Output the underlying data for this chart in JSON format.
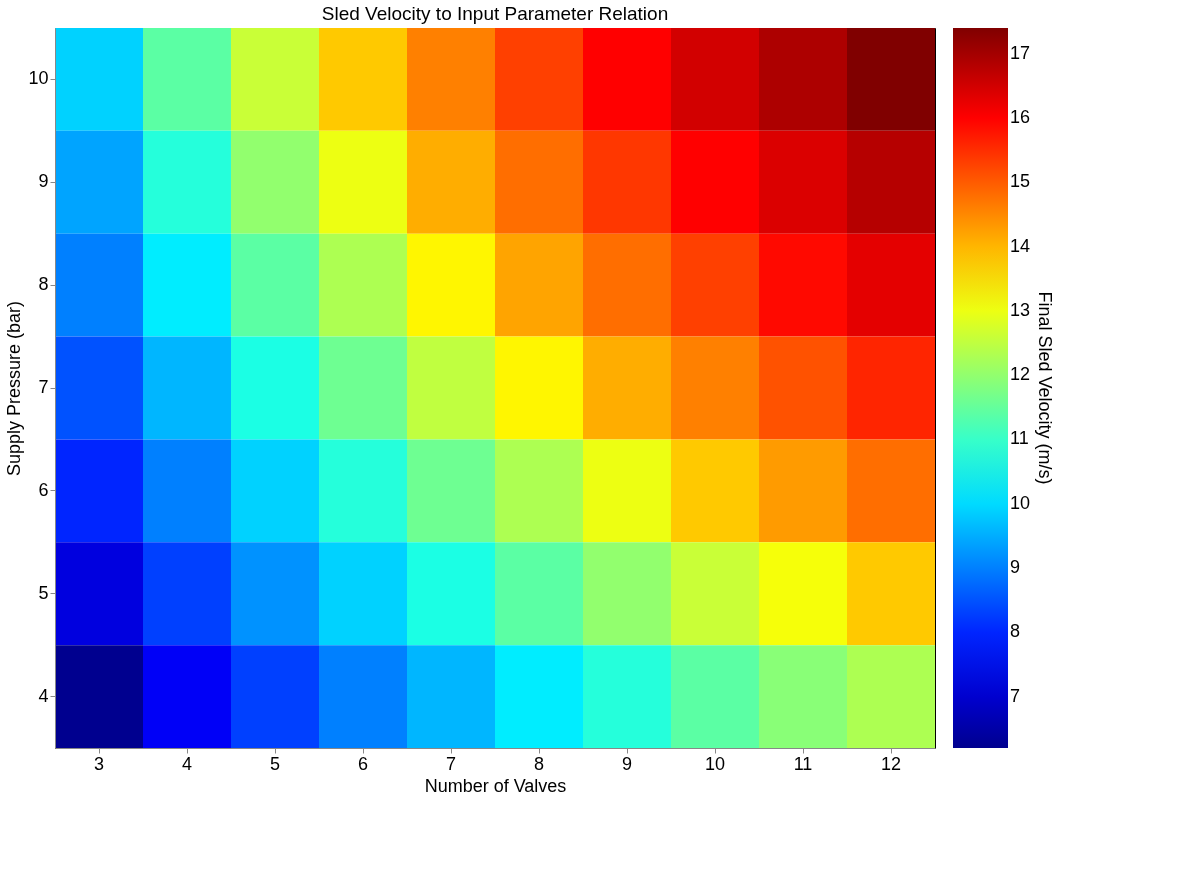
{
  "chart_data": {
    "type": "heatmap",
    "title": "Sled Velocity to Input Parameter Relation",
    "xlabel": "Number of Valves",
    "ylabel": "Supply Pressure (bar)",
    "clabel": "Final Sled Velocity (m/s)",
    "categories": [
      "3",
      "4",
      "5",
      "6",
      "7",
      "8",
      "9",
      "10",
      "11",
      "12"
    ],
    "y_categories": [
      "10",
      "9",
      "8",
      "7",
      "6",
      "5",
      "4"
    ],
    "cells": [
      [
        9.9,
        11.4,
        12.6,
        13.8,
        14.6,
        15.3,
        16,
        16.5,
        16.9,
        17.4
      ],
      [
        9.4,
        10.8,
        12,
        13,
        14.1,
        14.8,
        15.4,
        16,
        16.4,
        16.8
      ],
      [
        9,
        10.2,
        11.4,
        12.3,
        13.3,
        14.2,
        14.8,
        15.3,
        15.9,
        16.3
      ],
      [
        8.5,
        9.6,
        10.7,
        11.6,
        12.5,
        13.3,
        14.1,
        14.6,
        15.1,
        15.6
      ],
      [
        8,
        9,
        9.9,
        10.8,
        11.6,
        12.3,
        13,
        13.8,
        14.3,
        14.8
      ],
      [
        7.2,
        8.3,
        9.2,
        9.9,
        10.7,
        11.4,
        12,
        12.6,
        13.1,
        13.8
      ],
      [
        6.2,
        7.5,
        8.3,
        9,
        9.6,
        10.2,
        10.8,
        11.4,
        11.9,
        12.3
      ]
    ],
    "clim": [
      6.2,
      17.4
    ],
    "cticks": [
      7,
      8,
      9,
      10,
      11,
      12,
      13,
      14,
      15,
      16,
      17
    ]
  }
}
